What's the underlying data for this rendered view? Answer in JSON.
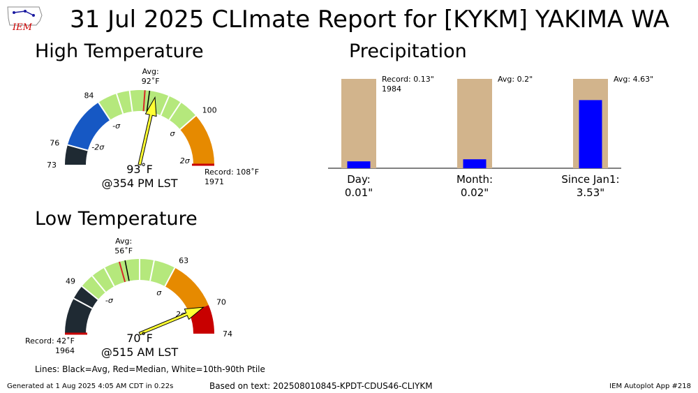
{
  "title": "31 Jul 2025 CLImate Report for [KYKM] YAKIMA WA",
  "logo_text": "IEM",
  "footer": {
    "generated": "Generated at 1 Aug 2025 4:05 AM CDT in 0.22s",
    "based_on": "Based on text: 202508010845-KPDT-CDUS46-CLIYKM",
    "app": "IEM Autoplot App #218"
  },
  "lines_note": "Lines: Black=Avg, Red=Median, White=10th-90th Ptile",
  "colors": {
    "dark": "#1f2a33",
    "blue": "#1658c4",
    "green": "#b5e87c",
    "orange": "#e68a00",
    "red": "#c80000",
    "tan": "#d2b48c",
    "bar": "#0000ff",
    "pointer": "#ffff33"
  },
  "chart_data": [
    {
      "type": "gauge",
      "title": "High Temperature",
      "min": 73,
      "max": 108,
      "avg_label": "Avg:",
      "avg_text": "92˚F",
      "avg": 92,
      "median": 91.3,
      "value": 93,
      "value_text": "93˚F",
      "time_text": "@354 PM LST",
      "record_text": "Record: 108˚F",
      "record_year": "1971",
      "ticks": [
        {
          "value": 73,
          "label": "73"
        },
        {
          "value": 76,
          "label": "76"
        },
        {
          "value": 84,
          "label": "84"
        },
        {
          "value": 100,
          "label": "100"
        }
      ],
      "sigma_labels": [
        {
          "value": 77.5,
          "label": "-2σ"
        },
        {
          "value": 84.5,
          "label": "-σ"
        },
        {
          "value": 99.5,
          "label": "σ"
        },
        {
          "value": 107,
          "label": "2σ"
        }
      ],
      "bands": [
        {
          "from": 73,
          "to": 76,
          "color": "dark"
        },
        {
          "from": 76,
          "to": 84,
          "color": "blue"
        },
        {
          "from": 84,
          "to": 100,
          "color": "green"
        },
        {
          "from": 100,
          "to": 108,
          "color": "orange"
        }
      ],
      "percentile_lines": [
        76,
        84,
        87,
        89,
        95,
        97,
        100
      ],
      "record_line": 108
    },
    {
      "type": "gauge",
      "title": "Low Temperature",
      "min": 42,
      "max": 74,
      "avg_label": "Avg:",
      "avg_text": "56˚F",
      "avg": 56,
      "median": 55.2,
      "value": 70,
      "value_text": "70˚F",
      "time_text": "@515 AM LST",
      "record_text": "Record: 42˚F",
      "record_year": "1964",
      "ticks": [
        {
          "value": 49,
          "label": "49"
        },
        {
          "value": 63,
          "label": "63"
        },
        {
          "value": 70,
          "label": "70"
        },
        {
          "value": 74,
          "label": "74"
        }
      ],
      "sigma_labels": [
        {
          "value": 50.5,
          "label": "-σ"
        },
        {
          "value": 62.5,
          "label": "σ"
        },
        {
          "value": 69.5,
          "label": "2σ"
        }
      ],
      "bands": [
        {
          "from": 42,
          "to": 49,
          "color": "dark"
        },
        {
          "from": 49,
          "to": 63,
          "color": "green"
        },
        {
          "from": 63,
          "to": 70,
          "color": "orange"
        },
        {
          "from": 70,
          "to": 74,
          "color": "red"
        }
      ],
      "percentile_lines": [
        47,
        49,
        51,
        53,
        58,
        60,
        63
      ],
      "record_line": 42
    },
    {
      "type": "bar",
      "title": "Precipitation",
      "categories": [
        "Day:",
        "Month:",
        "Since Jan1:"
      ],
      "value_texts": [
        "0.01\"",
        "0.02\"",
        "3.53\""
      ],
      "values": [
        0.01,
        0.02,
        3.53
      ],
      "reference": [
        0.13,
        0.2,
        4.63
      ],
      "reference_texts": [
        "Record: 0.13\"",
        "Avg: 0.2\"",
        "Avg: 4.63\""
      ],
      "reference_year": "1984"
    }
  ]
}
